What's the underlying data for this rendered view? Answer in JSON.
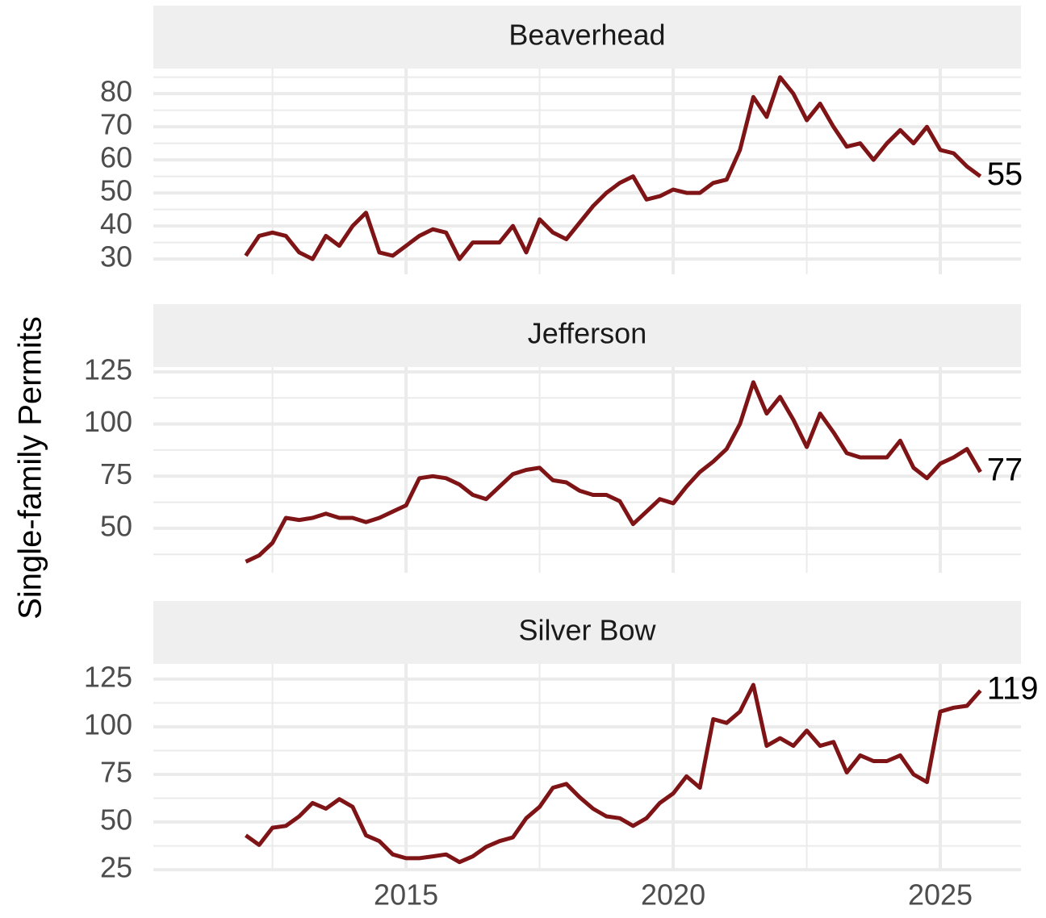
{
  "chart_data": {
    "type": "line",
    "y_label": "Single-family Permits",
    "color": "#7f1416",
    "grid": true,
    "x": [
      2012.0,
      2012.25,
      2012.5,
      2012.75,
      2013.0,
      2013.25,
      2013.5,
      2013.75,
      2014.0,
      2014.25,
      2014.5,
      2014.75,
      2015.0,
      2015.25,
      2015.5,
      2015.75,
      2016.0,
      2016.25,
      2016.5,
      2016.75,
      2017.0,
      2017.25,
      2017.5,
      2017.75,
      2018.0,
      2018.25,
      2018.5,
      2018.75,
      2019.0,
      2019.25,
      2019.5,
      2019.75,
      2020.0,
      2020.25,
      2020.5,
      2020.75,
      2021.0,
      2021.25,
      2021.5,
      2021.75,
      2022.0,
      2022.25,
      2022.5,
      2022.75,
      2023.0,
      2023.25,
      2023.5,
      2023.75,
      2024.0,
      2024.25,
      2024.5,
      2024.75,
      2025.0,
      2025.25,
      2025.5,
      2025.75
    ],
    "xlim": [
      2010.27,
      2026.51
    ],
    "xticks": [
      2015,
      2020,
      2025
    ],
    "facets": [
      {
        "title": "Beaverhead",
        "ylim": [
          25.4,
          87.6
        ],
        "yticks": [
          30,
          40,
          50,
          60,
          70,
          80
        ],
        "values": [
          31,
          37,
          38,
          37,
          32,
          30,
          37,
          34,
          40,
          44,
          32,
          31,
          34,
          37,
          39,
          38,
          30,
          35,
          35,
          35,
          40,
          32,
          42,
          38,
          36,
          41,
          46,
          50,
          53,
          55,
          48,
          49,
          51,
          50,
          50,
          53,
          54,
          63,
          79,
          73,
          85,
          80,
          72,
          77,
          70,
          64,
          65,
          60,
          65,
          69,
          65,
          70,
          63,
          62,
          58,
          55
        ]
      },
      {
        "title": "Jefferson",
        "ylim": [
          28.7,
          127.3
        ],
        "yticks": [
          50,
          75,
          100,
          125
        ],
        "values": [
          34,
          37,
          43,
          55,
          54,
          55,
          57,
          55,
          55,
          53,
          55,
          58,
          61,
          74,
          75,
          74,
          71,
          66,
          64,
          70,
          76,
          78,
          79,
          73,
          72,
          68,
          66,
          66,
          63,
          52,
          58,
          64,
          62,
          70,
          77,
          82,
          88,
          100,
          120,
          105,
          113,
          102,
          89,
          105,
          96,
          86,
          84,
          84,
          84,
          92,
          79,
          74,
          81,
          84,
          88,
          77
        ]
      },
      {
        "title": "Silver Bow",
        "ylim": [
          24.2,
          133
        ],
        "yticks": [
          25,
          50,
          75,
          100,
          125
        ],
        "values": [
          43,
          38,
          47,
          48,
          53,
          60,
          57,
          62,
          58,
          43,
          40,
          33,
          31,
          31,
          32,
          33,
          29,
          32,
          37,
          40,
          42,
          52,
          58,
          68,
          70,
          63,
          57,
          53,
          52,
          48,
          52,
          60,
          65,
          74,
          68,
          104,
          102,
          108,
          122,
          90,
          94,
          90,
          98,
          90,
          92,
          76,
          85,
          82,
          82,
          85,
          75,
          71,
          108,
          110,
          111,
          119
        ]
      }
    ]
  }
}
